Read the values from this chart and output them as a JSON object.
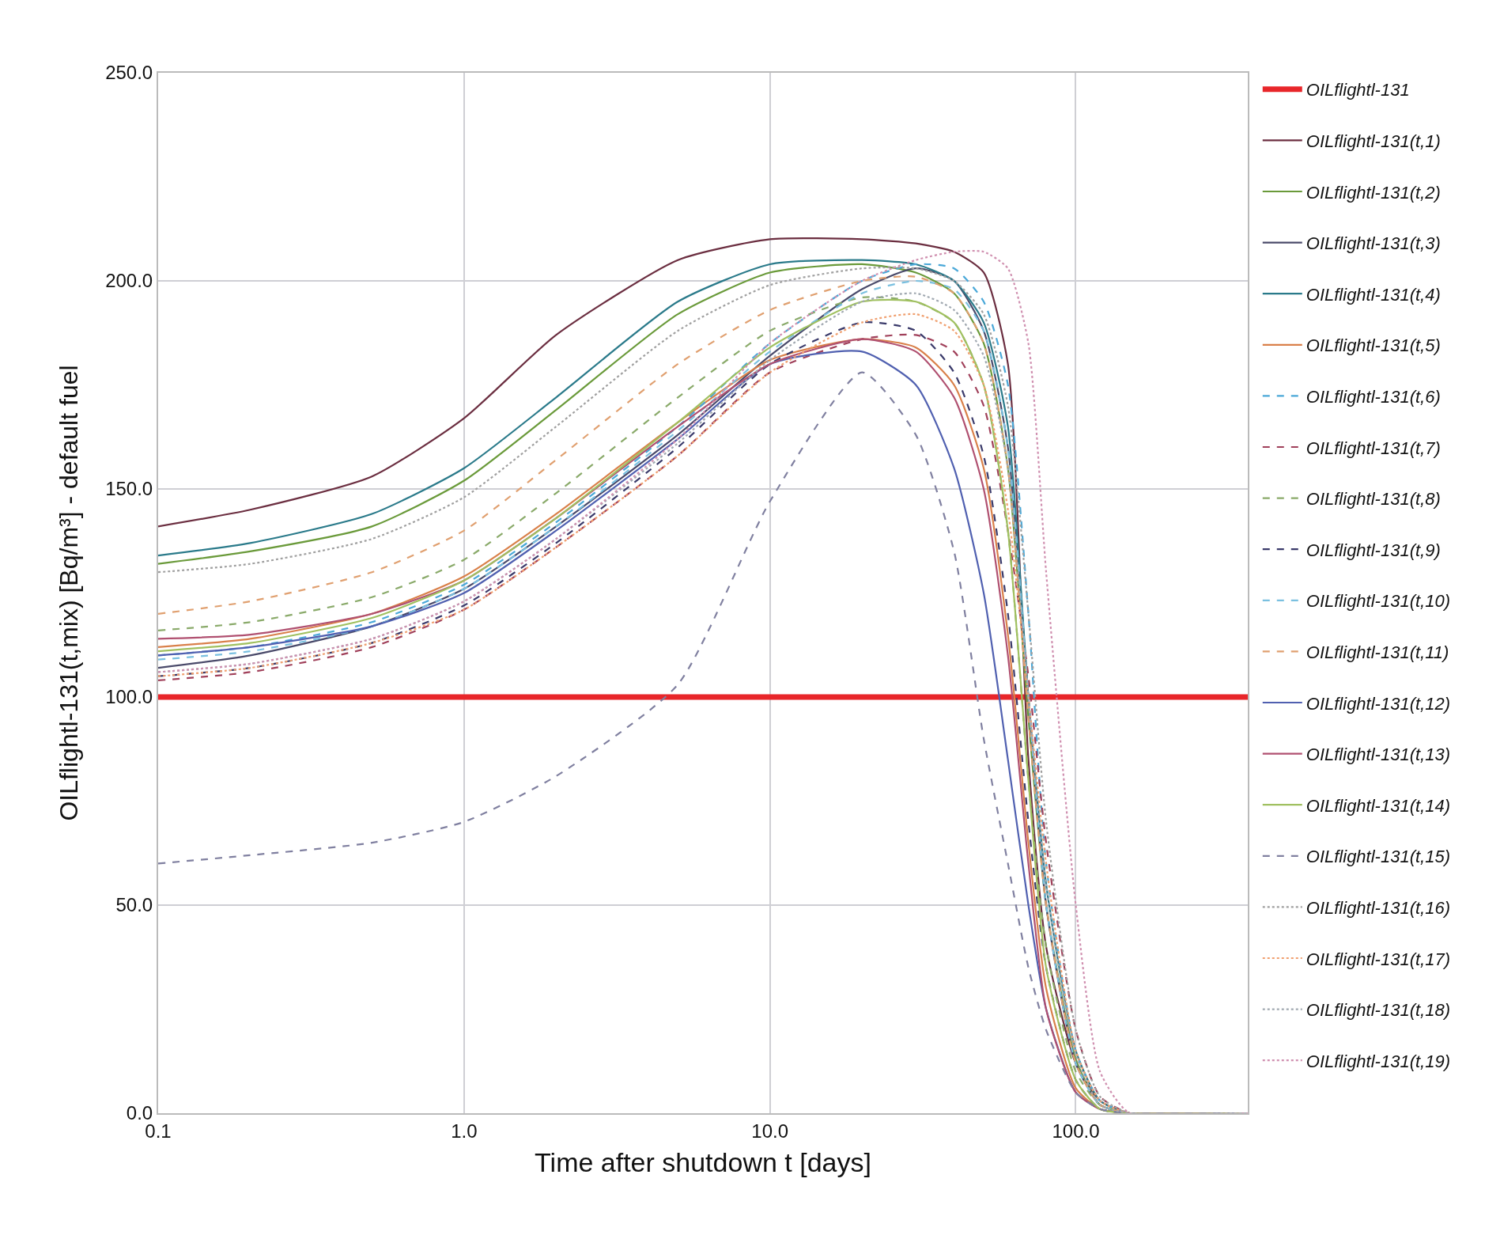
{
  "chart_data": {
    "type": "line",
    "xlabel": "Time after shutdown t [days]",
    "ylabel": "OILflightl-131(t,mix) [Bq/m³] - default fuel",
    "log": "x",
    "grid": true,
    "legend": "right",
    "marker": "none",
    "xlim": [
      0.1,
      365
    ],
    "xticks": [
      0.1,
      {
        "value": 1,
        "label": "1.0"
      },
      {
        "value": 10,
        "label": "10.0"
      },
      {
        "value": 100,
        "label": "100.0"
      }
    ],
    "ylim": [
      0,
      250
    ],
    "yticks": [
      {
        "value": 0,
        "label": "0.0"
      },
      {
        "value": 50,
        "label": "50.0"
      },
      {
        "value": 100,
        "label": "100.0"
      },
      {
        "value": 150,
        "label": "150.0"
      },
      {
        "value": 200,
        "label": "200.0"
      },
      {
        "value": 250,
        "label": "250.0"
      }
    ],
    "x": [
      0.1,
      0.2,
      0.5,
      1,
      2,
      5,
      10,
      20,
      30,
      40,
      50,
      60,
      70,
      80,
      100,
      120,
      150,
      365
    ],
    "series": [
      {
        "name": "OILflightl-131",
        "color": "#e8262a",
        "line_style": "solid",
        "x": [
          0.1,
          365
        ],
        "values": [
          100,
          100
        ]
      },
      {
        "name": "OILflightl-131(t,1)",
        "color": "#6b2e40",
        "line_style": "solid",
        "values": [
          141,
          145,
          153,
          167,
          187,
          205,
          210,
          210,
          209,
          207,
          202,
          180,
          85,
          40,
          12,
          3,
          0,
          0
        ]
      },
      {
        "name": "OILflightl-131(t,2)",
        "color": "#6a9a3a",
        "line_style": "solid",
        "values": [
          132,
          135,
          141,
          152,
          169,
          192,
          202,
          204,
          202,
          197,
          185,
          155,
          95,
          50,
          13,
          2,
          0,
          0
        ]
      },
      {
        "name": "OILflightl-131(t,3)",
        "color": "#4a4a6a",
        "line_style": "solid",
        "values": [
          107,
          110,
          117,
          126,
          141,
          163,
          182,
          198,
          203,
          200,
          188,
          160,
          100,
          50,
          12,
          2,
          0,
          0
        ]
      },
      {
        "name": "OILflightl-131(t,4)",
        "color": "#2a7a8a",
        "line_style": "solid",
        "values": [
          134,
          137,
          144,
          155,
          172,
          195,
          204,
          205,
          204,
          200,
          190,
          165,
          100,
          55,
          15,
          3,
          0,
          0
        ]
      },
      {
        "name": "OILflightl-131(t,5)",
        "color": "#d9804a",
        "line_style": "solid",
        "values": [
          112,
          114,
          120,
          129,
          144,
          166,
          181,
          186,
          184,
          175,
          155,
          115,
          65,
          30,
          6,
          1,
          0,
          0
        ]
      },
      {
        "name": "OILflightl-131(t,6)",
        "color": "#4aa8d8",
        "line_style": "dashed",
        "values": [
          110,
          112,
          118,
          127,
          142,
          165,
          185,
          200,
          204,
          203,
          195,
          175,
          120,
          60,
          15,
          3,
          0,
          0
        ]
      },
      {
        "name": "OILflightl-131(t,7)",
        "color": "#a0405a",
        "line_style": "dashed",
        "values": [
          104,
          106,
          112,
          121,
          136,
          158,
          178,
          186,
          187,
          183,
          170,
          140,
          105,
          65,
          20,
          4,
          0,
          0
        ]
      },
      {
        "name": "OILflightl-131(t,8)",
        "color": "#8aaa6a",
        "line_style": "dashed",
        "values": [
          116,
          118,
          124,
          133,
          149,
          172,
          188,
          196,
          195,
          190,
          175,
          140,
          80,
          40,
          10,
          2,
          0,
          0
        ]
      },
      {
        "name": "OILflightl-131(t,9)",
        "color": "#3a3a6a",
        "line_style": "dashed",
        "values": [
          105,
          107,
          113,
          122,
          137,
          160,
          180,
          190,
          188,
          178,
          158,
          120,
          70,
          35,
          8,
          1,
          0,
          0
        ]
      },
      {
        "name": "OILflightl-131(t,10)",
        "color": "#7ac0e0",
        "line_style": "dashed",
        "values": [
          109,
          111,
          117,
          126,
          141,
          164,
          183,
          197,
          200,
          198,
          188,
          160,
          100,
          50,
          12,
          2,
          0,
          0
        ]
      },
      {
        "name": "OILflightl-131(t,11)",
        "color": "#e0a070",
        "line_style": "dashed",
        "values": [
          120,
          123,
          130,
          140,
          157,
          180,
          193,
          200,
          201,
          197,
          185,
          155,
          95,
          50,
          12,
          2,
          0,
          0
        ]
      },
      {
        "name": "OILflightl-131(t,12)",
        "color": "#5060b0",
        "line_style": "solid",
        "values": [
          110,
          112,
          117,
          125,
          140,
          162,
          180,
          183,
          175,
          155,
          125,
          85,
          50,
          25,
          5,
          1,
          0,
          0
        ]
      },
      {
        "name": "OILflightl-131(t,13)",
        "color": "#b05070",
        "line_style": "solid",
        "values": [
          114,
          115,
          120,
          128,
          143,
          165,
          180,
          186,
          183,
          172,
          150,
          110,
          60,
          25,
          5,
          1,
          0,
          0
        ]
      },
      {
        "name": "OILflightl-131(t,14)",
        "color": "#a0c060",
        "line_style": "solid",
        "values": [
          111,
          113,
          119,
          128,
          143,
          166,
          184,
          195,
          195,
          190,
          175,
          140,
          80,
          35,
          8,
          1,
          0,
          0
        ]
      },
      {
        "name": "OILflightl-131(t,15)",
        "color": "#8080a0",
        "line_style": "dashed",
        "values": [
          60,
          62,
          65,
          70,
          81,
          103,
          147,
          178,
          163,
          135,
          90,
          60,
          35,
          20,
          5,
          1,
          0,
          0
        ]
      },
      {
        "name": "OILflightl-131(t,16)",
        "color": "#a0a0a0",
        "line_style": "dotted",
        "values": [
          130,
          132,
          138,
          148,
          165,
          188,
          199,
          203,
          203,
          200,
          192,
          170,
          120,
          70,
          20,
          4,
          0,
          0
        ]
      },
      {
        "name": "OILflightl-131(t,17)",
        "color": "#f0a070",
        "line_style": "dotted",
        "values": [
          105,
          107,
          113,
          121,
          136,
          158,
          178,
          190,
          192,
          188,
          175,
          145,
          100,
          60,
          15,
          3,
          0,
          0
        ]
      },
      {
        "name": "OILflightl-131(t,18)",
        "color": "#a0a8b0",
        "line_style": "dotted",
        "values": [
          106,
          108,
          114,
          123,
          138,
          161,
          181,
          195,
          197,
          193,
          182,
          155,
          100,
          55,
          14,
          2,
          0,
          0
        ]
      },
      {
        "name": "OILflightl-131(t,19)",
        "color": "#d090b0",
        "line_style": "dotted",
        "values": [
          106,
          108,
          114,
          123,
          138,
          162,
          185,
          200,
          205,
          207,
          207,
          203,
          185,
          130,
          50,
          10,
          0,
          0
        ]
      }
    ]
  }
}
